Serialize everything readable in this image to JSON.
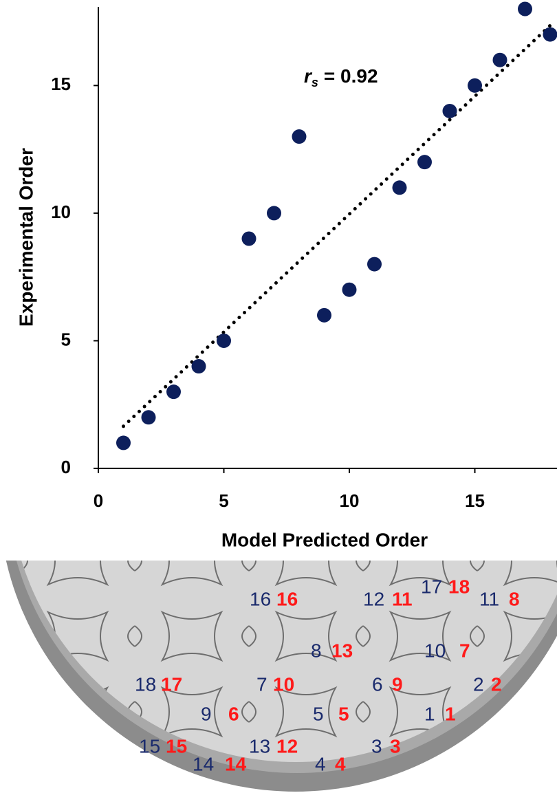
{
  "chart_data": {
    "type": "scatter",
    "x": [
      1,
      2,
      3,
      4,
      5,
      6,
      7,
      8,
      9,
      10,
      11,
      12,
      13,
      14,
      15,
      16,
      17,
      18
    ],
    "values": [
      1,
      2,
      3,
      4,
      5,
      9,
      10,
      13,
      6,
      7,
      8,
      11,
      12,
      14,
      15,
      16,
      18,
      17
    ],
    "color": "#0d1f5c",
    "trendline": {
      "kind": "linear",
      "style": "dotted",
      "color": "#000000"
    },
    "xlabel": "Model Predicted Order",
    "ylabel": "Experimental Order",
    "xlim": [
      0,
      18
    ],
    "ylim": [
      0,
      18
    ],
    "xticks": [
      0,
      5,
      10,
      15
    ],
    "yticks": [
      0,
      5,
      10,
      15
    ],
    "annotation": {
      "symbol": "r",
      "subscript": "s",
      "text": "= 0.92"
    }
  },
  "wafer_labels": [
    {
      "model": 17,
      "experimental": 18
    },
    {
      "model": 16,
      "experimental": 16
    },
    {
      "model": 12,
      "experimental": 11
    },
    {
      "model": 11,
      "experimental": 8
    },
    {
      "model": 8,
      "experimental": 13
    },
    {
      "model": 10,
      "experimental": 7
    },
    {
      "model": 18,
      "experimental": 17
    },
    {
      "model": 7,
      "experimental": 10
    },
    {
      "model": 6,
      "experimental": 9
    },
    {
      "model": 2,
      "experimental": 2
    },
    {
      "model": 9,
      "experimental": 6
    },
    {
      "model": 5,
      "experimental": 5
    },
    {
      "model": 1,
      "experimental": 1
    },
    {
      "model": 15,
      "experimental": 15
    },
    {
      "model": 13,
      "experimental": 12
    },
    {
      "model": 3,
      "experimental": 3
    },
    {
      "model": 14,
      "experimental": 14
    },
    {
      "model": 4,
      "experimental": 4
    }
  ],
  "wafer_colors": {
    "model": "#1a2a6c",
    "experimental": "#ff1a1a"
  }
}
